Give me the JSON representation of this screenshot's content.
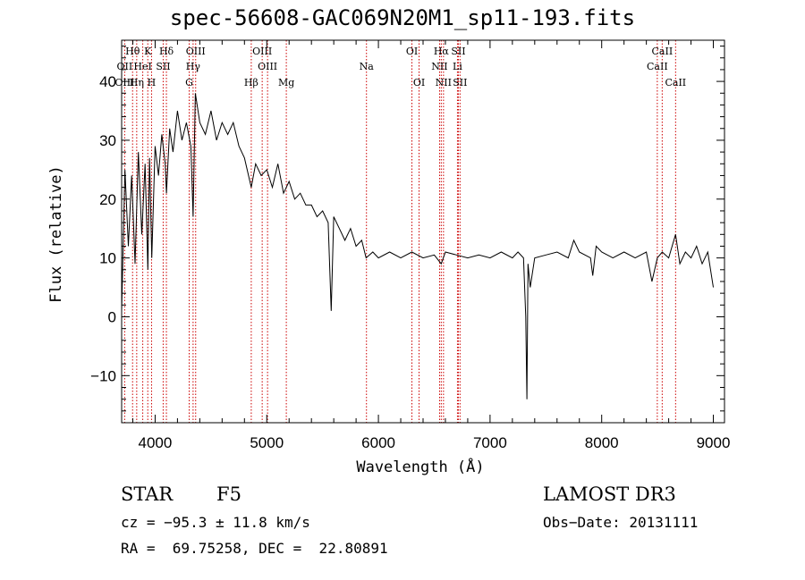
{
  "chart_data": {
    "type": "line",
    "title": "spec-56608-GAC069N20M1_sp11-193.fits",
    "xlabel": "Wavelength (Å)",
    "ylabel": "Flux (relative)",
    "xlim": [
      3700,
      9100
    ],
    "ylim": [
      -18,
      47
    ],
    "xticks": [
      4000,
      5000,
      6000,
      7000,
      8000,
      9000
    ],
    "yticks": [
      -10,
      0,
      10,
      20,
      30,
      40
    ],
    "series": [
      {
        "name": "spectrum",
        "x": [
          3700,
          3730,
          3760,
          3790,
          3820,
          3850,
          3880,
          3910,
          3935,
          3950,
          3970,
          4000,
          4030,
          4060,
          4090,
          4101,
          4130,
          4160,
          4200,
          4240,
          4280,
          4320,
          4340,
          4360,
          4400,
          4450,
          4500,
          4550,
          4600,
          4650,
          4700,
          4750,
          4800,
          4861,
          4900,
          4950,
          5000,
          5050,
          5100,
          5150,
          5200,
          5250,
          5300,
          5350,
          5400,
          5450,
          5500,
          5550,
          5577,
          5600,
          5650,
          5700,
          5750,
          5800,
          5850,
          5890,
          5950,
          6000,
          6100,
          6200,
          6300,
          6400,
          6500,
          6563,
          6600,
          6700,
          6800,
          6900,
          7000,
          7100,
          7200,
          7250,
          7300,
          7320,
          7330,
          7340,
          7360,
          7400,
          7500,
          7600,
          7700,
          7750,
          7800,
          7900,
          7920,
          7950,
          8000,
          8100,
          8200,
          8300,
          8400,
          8450,
          8498,
          8542,
          8600,
          8662,
          8700,
          8750,
          8800,
          8850,
          8900,
          8950,
          9000
        ],
        "y": [
          1,
          25,
          12,
          24,
          9,
          28,
          14,
          26,
          8,
          27,
          10,
          29,
          24,
          31,
          26,
          21,
          32,
          28,
          35,
          30,
          33,
          29,
          17,
          38,
          33,
          31,
          35,
          30,
          33,
          31,
          33,
          29,
          27,
          22,
          26,
          24,
          25,
          22,
          26,
          21,
          23,
          20,
          21,
          19,
          19,
          17,
          18,
          16,
          1,
          17,
          15,
          13,
          15,
          12,
          13,
          10,
          11,
          10,
          11,
          10,
          11,
          10,
          10.5,
          9,
          11,
          10.5,
          10,
          10.5,
          10,
          11,
          10,
          11,
          10,
          0,
          -14,
          9,
          5,
          10,
          10.5,
          11,
          10,
          13,
          11,
          10,
          7,
          12,
          11,
          10,
          11,
          10,
          11,
          6,
          10,
          11,
          10,
          14,
          9,
          11,
          10,
          12,
          9,
          11,
          5
        ]
      }
    ],
    "line_labels": [
      {
        "label": "Hθ",
        "wavelength": 3798,
        "row": 1
      },
      {
        "label": "K",
        "wavelength": 3934,
        "row": 1
      },
      {
        "label": "Hδ",
        "wavelength": 4101,
        "row": 1
      },
      {
        "label": "OIII",
        "wavelength": 4363,
        "row": 1
      },
      {
        "label": "OIII",
        "wavelength": 4959,
        "row": 1
      },
      {
        "label": "OI",
        "wavelength": 6300,
        "row": 1
      },
      {
        "label": "Hα",
        "wavelength": 6563,
        "row": 1
      },
      {
        "label": "SII",
        "wavelength": 6716,
        "row": 1
      },
      {
        "label": "CaII",
        "wavelength": 8542,
        "row": 1
      },
      {
        "label": "OII",
        "wavelength": 3727,
        "row": 2
      },
      {
        "label": "HeI",
        "wavelength": 3889,
        "row": 2
      },
      {
        "label": "SII",
        "wavelength": 4072,
        "row": 2
      },
      {
        "label": "Hγ",
        "wavelength": 4340,
        "row": 2
      },
      {
        "label": "OIII",
        "wavelength": 5007,
        "row": 2
      },
      {
        "label": "Na",
        "wavelength": 5893,
        "row": 2
      },
      {
        "label": "NII",
        "wavelength": 6548,
        "row": 2
      },
      {
        "label": "Li",
        "wavelength": 6708,
        "row": 2
      },
      {
        "label": "CaII",
        "wavelength": 8498,
        "row": 2
      },
      {
        "label": "OIII",
        "wavelength": 3727,
        "row": 3
      },
      {
        "label": "Hη",
        "wavelength": 3835,
        "row": 3
      },
      {
        "label": "H",
        "wavelength": 3968,
        "row": 3
      },
      {
        "label": "G",
        "wavelength": 4305,
        "row": 3
      },
      {
        "label": "Hβ",
        "wavelength": 4861,
        "row": 3
      },
      {
        "label": "Mg",
        "wavelength": 5175,
        "row": 3
      },
      {
        "label": "OI",
        "wavelength": 6364,
        "row": 3
      },
      {
        "label": "NII",
        "wavelength": 6583,
        "row": 3
      },
      {
        "label": "SII",
        "wavelength": 6731,
        "row": 3
      },
      {
        "label": "CaII",
        "wavelength": 8662,
        "row": 3
      }
    ]
  },
  "info": {
    "object_class": "STAR",
    "subclass": "F5",
    "survey": "LAMOST DR3",
    "cz": "cz = −95.3 ± 11.8 km/s",
    "obs_date": "Obs−Date: 20131111",
    "coords": "RA =  69.75258, DEC =  22.80891"
  }
}
